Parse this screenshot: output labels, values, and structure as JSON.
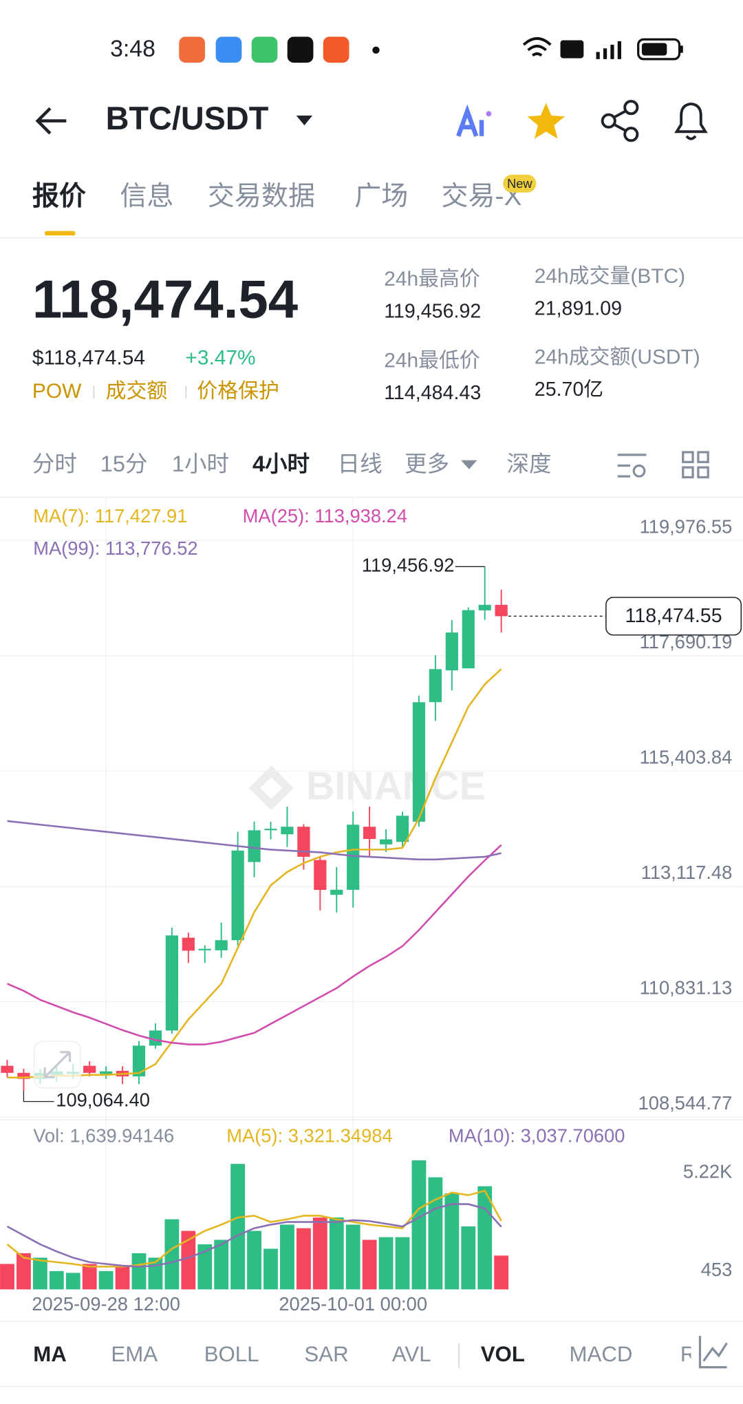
{
  "status_bar": {
    "time": "3:48"
  },
  "header": {
    "pair": "BTC/USDT"
  },
  "tabs": [
    "报价",
    "信息",
    "交易数据",
    "广场",
    "交易-X"
  ],
  "tab_badge": "New",
  "price": {
    "last": "118,474.54",
    "usd": "$118,474.54",
    "change": "+3.47%",
    "tags": [
      "POW",
      "成交额",
      "价格保护"
    ]
  },
  "stats": [
    {
      "label": "24h最高价",
      "value": "119,456.92"
    },
    {
      "label": "24h最低价",
      "value": "114,484.43"
    },
    {
      "label": "24h成交量(BTC)",
      "value": "21,891.09"
    },
    {
      "label": "24h成交额(USDT)",
      "value": "25.70亿"
    }
  ],
  "timeframes": [
    "分时",
    "15分",
    "1小时",
    "4小时",
    "日线",
    "更多",
    "深度"
  ],
  "chart_data": [
    {
      "type": "candlestick",
      "watermark": "BINANCE",
      "legend": [
        "MA(7): 117,427.91",
        "MA(25): 113,938.24",
        "MA(99): 113,776.52"
      ],
      "categories": [
        null,
        null,
        null,
        null,
        null,
        null,
        "2025-09-28 12:00",
        null,
        null,
        null,
        null,
        null,
        null,
        null,
        null,
        null,
        null,
        null,
        null,
        null,
        null,
        "2025-10-01 00:00",
        null,
        null,
        null,
        null,
        null,
        null,
        null,
        null,
        null
      ],
      "open": [
        109560,
        109420,
        109300,
        109380,
        109400,
        109560,
        109400,
        109460,
        109350,
        109960,
        110260,
        112100,
        111850,
        111850,
        112050,
        113600,
        114230,
        114150,
        114300,
        113640,
        112950,
        113050,
        114300,
        113950,
        114000,
        114400,
        116770,
        117400,
        117440,
        118590,
        118700
      ],
      "high": [
        109680,
        109500,
        109500,
        109550,
        109600,
        109650,
        109550,
        109550,
        110050,
        110400,
        112300,
        112200,
        111950,
        112400,
        114200,
        114400,
        114400,
        114700,
        114350,
        113700,
        113500,
        114600,
        114700,
        114250,
        114600,
        116900,
        117700,
        118400,
        118650,
        119456.92,
        119000
      ],
      "low": [
        109330,
        109064.4,
        109200,
        109250,
        109300,
        109350,
        109300,
        109200,
        109200,
        109900,
        110200,
        111600,
        111600,
        111700,
        111950,
        113300,
        114050,
        113900,
        113450,
        112640,
        112600,
        112700,
        113700,
        113800,
        113900,
        114300,
        116400,
        117000,
        117450,
        118400,
        118150
      ],
      "close": [
        109420,
        109300,
        109420,
        109450,
        109440,
        109420,
        109450,
        109350,
        109960,
        110260,
        112144,
        111843,
        111880,
        112050,
        113828,
        114230,
        114260,
        114300,
        113704,
        113048,
        113050,
        114340,
        114058,
        114050,
        114518,
        116769,
        117425,
        118151,
        118594,
        118700,
        118474.55
      ],
      "up_color": "#2ebd85",
      "down_color": "#f6465d",
      "series": [
        {
          "color": "#e3b51f",
          "values": [
            109327,
            109327,
            109345,
            109363,
            109363,
            109380,
            109380,
            109398,
            109416,
            109593,
            110036,
            110479,
            110830,
            111188,
            111897,
            112606,
            113137,
            113403,
            113580,
            113704,
            113793,
            113846,
            113846,
            113846,
            113881,
            114466,
            115264,
            115972,
            116681,
            117124,
            117427.91
          ]
        },
        {
          "color": "#d04dae",
          "values": [
            111188,
            111046,
            110869,
            110745,
            110621,
            110515,
            110391,
            110267,
            110160,
            110072,
            110018,
            109983,
            109983,
            110036,
            110125,
            110213,
            110391,
            110568,
            110745,
            110922,
            111099,
            111330,
            111542,
            111720,
            111932,
            112251,
            112606,
            112960,
            113314,
            113633,
            113938.24
          ]
        },
        {
          "color": "#8a6fb5",
          "values": [
            114413,
            114377,
            114341,
            114306,
            114271,
            114235,
            114200,
            114164,
            114129,
            114094,
            114058,
            114023,
            113987,
            113952,
            113916,
            113881,
            113845,
            113828,
            113810,
            113792,
            113757,
            113721,
            113704,
            113686,
            113668,
            113651,
            113651,
            113668,
            113686,
            113704,
            113776.52
          ]
        }
      ],
      "annotations": {
        "high": "119,456.92",
        "low": "109,064.40",
        "last": "118,474.55"
      },
      "ylim": [
        108500,
        120750
      ],
      "yticks": [
        {
          "value": 119976.55,
          "label": "119,976.55"
        },
        {
          "value": 117690.19,
          "label": "117,690.19"
        },
        {
          "value": 115403.84,
          "label": "115,403.84"
        },
        {
          "value": 113117.48,
          "label": "113,117.48"
        },
        {
          "value": 110831.13,
          "label": "110,831.13"
        },
        {
          "value": 108544.77,
          "label": "108,544.77"
        }
      ],
      "grid": true
    },
    {
      "type": "bar",
      "legend": [
        "Vol: 1,639.94146",
        "MA(5): 3,321.34984",
        "MA(10): 3,037.70600"
      ],
      "values": [
        1235,
        1755,
        1538,
        888,
        802,
        1235,
        888,
        1105,
        1755,
        1538,
        3401,
        2838,
        2188,
        2405,
        6088,
        2838,
        1971,
        3141,
        2968,
        3488,
        3488,
        3141,
        2405,
        2535,
        2535,
        6261,
        5438,
        4658,
        3055,
        5004,
        1639.94146
      ],
      "series": [
        {
          "color": "#e3b51f",
          "values": [
            2188,
            1538,
            1408,
            1322,
            1235,
            1105,
            1105,
            1105,
            1192,
            1322,
            1971,
            2405,
            2838,
            3141,
            3488,
            3575,
            3271,
            3401,
            3575,
            3575,
            3401,
            3271,
            3141,
            3055,
            2968,
            3921,
            4355,
            4701,
            4571,
            4788,
            3321.34984
          ]
        },
        {
          "color": "#8a6fb5",
          "values": [
            3055,
            2621,
            2188,
            1842,
            1538,
            1322,
            1235,
            1148,
            1105,
            1148,
            1322,
            1538,
            1842,
            2188,
            2621,
            2968,
            3141,
            3271,
            3271,
            3271,
            3271,
            3358,
            3314,
            3184,
            3055,
            3488,
            3921,
            4138,
            4138,
            3921,
            3037.706
          ]
        }
      ],
      "ylim": [
        0,
        6300
      ],
      "yticks": [
        {
          "value": 5220,
          "label": "5.22K"
        },
        453
      ]
    }
  ],
  "indicators": [
    "MA",
    "EMA",
    "BOLL",
    "SAR",
    "AVL",
    "VOL",
    "MACD",
    "R"
  ]
}
